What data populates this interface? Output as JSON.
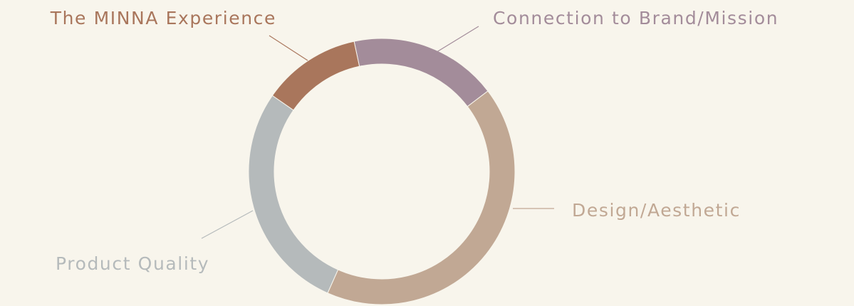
{
  "chart_data": {
    "type": "donut",
    "categories": [
      "Connection to Brand/Mission",
      "Design/Aesthetic",
      "Product Quality",
      "The MINNA Experience"
    ],
    "values": [
      18,
      42,
      28,
      12
    ],
    "colors": [
      "#a38c9a",
      "#c1a894",
      "#b5babb",
      "#a9765c"
    ]
  }
}
